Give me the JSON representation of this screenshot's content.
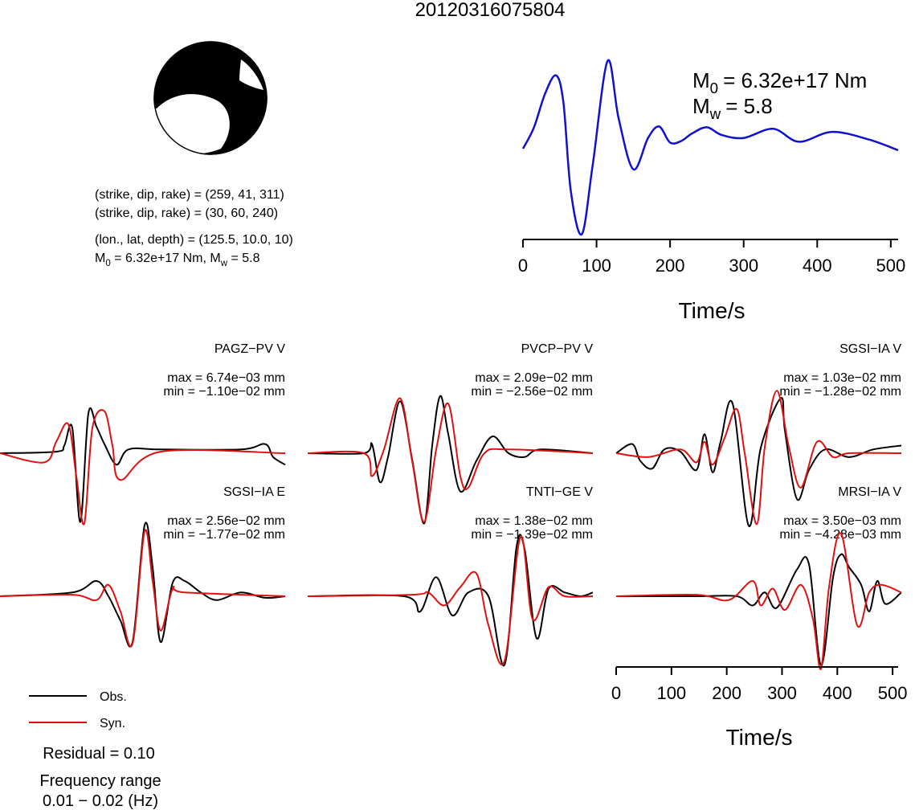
{
  "title": "20120316075804",
  "colors": {
    "obs": "#000000",
    "syn": "#e01010",
    "stf": "#1010d0",
    "beach_dark": "#000000",
    "beach_light": "#ffffff"
  },
  "mechanism": {
    "line1": "(strike, dip, rake) = (259, 41, 311)",
    "line2": "(strike, dip, rake) = (30, 60, 240)",
    "line3": "(lon., lat, depth) = (125.5, 10.0, 10)",
    "m0_line": {
      "m": "M",
      "sub0": "0",
      "v0": " = 6.32e+17 Nm, M",
      "subw": "w",
      "vw": " = 5.8"
    }
  },
  "stf_labels": {
    "m0_value": "= 6.32e+17 Nm",
    "mw_value": "= 5.8",
    "m": "M",
    "sub0": "0",
    "subw": "w"
  },
  "stf_axis": {
    "label": "Time/s",
    "ticks": [
      "0",
      "100",
      "200",
      "300",
      "400",
      "500"
    ]
  },
  "wave_axis": {
    "label": "Time/s",
    "ticks": [
      "0",
      "100",
      "200",
      "300",
      "400",
      "500"
    ]
  },
  "legend": {
    "obs": "Obs.",
    "syn": "Syn."
  },
  "residual": "Residual = 0.10",
  "frequency": {
    "line1": "Frequency range",
    "line2": "0.01 − 0.02 (Hz)"
  },
  "chart_data": [
    {
      "type": "line",
      "name": "source time function",
      "x_range": [
        0,
        510
      ],
      "x": [
        0,
        15,
        30,
        45,
        55,
        65,
        80,
        95,
        115,
        130,
        150,
        170,
        185,
        200,
        215,
        230,
        250,
        270,
        300,
        340,
        375,
        420,
        470,
        510
      ],
      "y": [
        0,
        0.28,
        0.72,
        0.96,
        0.6,
        -0.55,
        -1.12,
        -0.2,
        1.15,
        0.4,
        -0.27,
        0.14,
        0.29,
        0.08,
        0.1,
        0.2,
        0.28,
        0.18,
        0.14,
        0.26,
        0.09,
        0.22,
        0.12,
        -0.02
      ]
    },
    {
      "type": "line",
      "x_range": [
        0,
        510
      ],
      "stations": [
        {
          "label": "PAGZ−PV V",
          "max_label": "max = 6.74e−03 mm",
          "min_label": "min = −1.10e−02 mm",
          "series": [
            {
              "name": "Obs.",
              "x": [
                0,
                70,
                80,
                90,
                100,
                110,
                120,
                130,
                145,
                160,
                200,
                300,
                330,
                340,
                355
              ],
              "y": [
                0,
                0.02,
                0.1,
                0.33,
                -0.9,
                0.52,
                0.35,
                0.12,
                -0.15,
                0.05,
                0.05,
                0.05,
                0.12,
                -0.05,
                -0.15
              ]
            },
            {
              "name": "Syn.",
              "x": [
                0,
                55,
                70,
                85,
                95,
                105,
                115,
                130,
                140,
                150,
                200,
                355
              ],
              "y": [
                0,
                -0.12,
                0.15,
                0.38,
                -0.3,
                -0.92,
                0.33,
                0.55,
                0.1,
                -0.35,
                0.02,
                0
              ]
            }
          ]
        },
        {
          "label": "PVCP−PV V",
          "max_label": "max = 2.09e−02 mm",
          "min_label": "min = −2.56e−02 mm",
          "series": [
            {
              "name": "Obs.",
              "x": [
                0,
                70,
                80,
                90,
                100,
                115,
                130,
                145,
                155,
                165,
                175,
                190,
                210,
                230,
                250,
                270,
                290,
                355
              ],
              "y": [
                0,
                0,
                0.12,
                -0.38,
                -0.05,
                0.68,
                -0.08,
                -0.92,
                0.1,
                0.75,
                0.25,
                -0.5,
                -0.1,
                0.22,
                0,
                -0.05,
                0.05,
                0
              ]
            },
            {
              "name": "Syn.",
              "x": [
                0,
                70,
                80,
                95,
                115,
                130,
                145,
                160,
                175,
                190,
                200,
                220,
                250,
                355
              ],
              "y": [
                0,
                0,
                -0.3,
                0.05,
                0.72,
                -0.1,
                -0.9,
                0.05,
                0.65,
                -0.3,
                -0.45,
                0,
                0.05,
                0
              ]
            }
          ]
        },
        {
          "label": "SGSI−IA V",
          "max_label": "max = 1.03e−02 mm",
          "min_label": "min = −1.28e−02 mm",
          "series": [
            {
              "name": "Obs.",
              "x": [
                0,
                20,
                30,
                45,
                60,
                80,
                100,
                110,
                120,
                130,
                145,
                165,
                180,
                205,
                210,
                225,
                240,
                260,
                290,
                320,
                355
              ],
              "y": [
                0,
                0.12,
                -0.1,
                -0.2,
                0.05,
                0.02,
                -0.22,
                0.25,
                -0.25,
                0.15,
                0.65,
                -0.95,
                0.07,
                0.72,
                0.3,
                -0.6,
                -0.22,
                0.05,
                -0.05,
                0.05,
                0.1
              ]
            },
            {
              "name": "Syn.",
              "x": [
                0,
                40,
                80,
                100,
                110,
                120,
                135,
                150,
                160,
                175,
                185,
                200,
                215,
                230,
                250,
                270,
                290,
                355
              ],
              "y": [
                0,
                -0.05,
                0.05,
                -0.12,
                0.15,
                -0.15,
                0.2,
                0.58,
                0.0,
                -0.93,
                0.08,
                0.82,
                0.08,
                -0.45,
                0.15,
                -0.05,
                0,
                0
              ]
            }
          ]
        },
        {
          "label": "SGSI−IA E",
          "max_label": "max = 2.56e−02 mm",
          "min_label": "min = −1.77e−02 mm",
          "series": [
            {
              "name": "Obs.",
              "x": [
                0,
                90,
                120,
                135,
                150,
                165,
                180,
                190,
                200,
                215,
                230,
                250,
                270,
                300,
                330,
                355
              ],
              "y": [
                0,
                0.05,
                0.2,
                0,
                -0.32,
                -0.6,
                0.93,
                0.38,
                -0.6,
                0.18,
                0.2,
                0.05,
                -0.05,
                0.05,
                -0.02,
                0
              ]
            },
            {
              "name": "Syn.",
              "x": [
                0,
                90,
                120,
                135,
                150,
                165,
                180,
                190,
                200,
                215,
                230,
                355
              ],
              "y": [
                0,
                0.02,
                -0.05,
                0.15,
                -0.2,
                -0.62,
                0.85,
                0.2,
                -0.45,
                0.1,
                0.05,
                0
              ]
            }
          ]
        },
        {
          "label": "TNTI−GE V",
          "max_label": "max = 1.38e−02 mm",
          "min_label": "min = −1.39e−02 mm",
          "series": [
            {
              "name": "Obs.",
              "x": [
                0,
                120,
                140,
                160,
                180,
                200,
                225,
                245,
                260,
                270,
                285,
                300,
                320,
                340,
                355
              ],
              "y": [
                0,
                0,
                -0.2,
                0.25,
                -0.25,
                0.05,
                0.0,
                -0.9,
                0.65,
                0.62,
                -0.55,
                0.1,
                0.05,
                0,
                0.05
              ]
            },
            {
              "name": "Syn.",
              "x": [
                0,
                130,
                150,
                170,
                190,
                210,
                225,
                245,
                265,
                280,
                300,
                320,
                355
              ],
              "y": [
                0,
                0.02,
                0.05,
                -0.12,
                0.12,
                0.3,
                -0.38,
                -0.85,
                0.78,
                -0.3,
                0.12,
                0,
                0
              ]
            }
          ]
        },
        {
          "label": "MRSI−IA V",
          "max_label": "max = 3.50e−03 mm",
          "min_label": "min = −4.28e−03 mm",
          "series": [
            {
              "name": "Obs.",
              "x": [
                0,
                100,
                150,
                170,
                185,
                200,
                225,
                240,
                255,
                270,
                280,
                290,
                305,
                315,
                325,
                335,
                355
              ],
              "y": [
                0,
                0,
                0.0,
                -0.12,
                0.05,
                -0.15,
                0.35,
                0.42,
                -0.9,
                0.25,
                0.55,
                0.38,
                0.15,
                -0.2,
                0.2,
                -0.1,
                0.05
              ]
            },
            {
              "name": "Syn.",
              "x": [
                0,
                100,
                140,
                170,
                180,
                195,
                210,
                230,
                245,
                255,
                265,
                280,
                300,
                315,
                330,
                355
              ],
              "y": [
                0,
                0.02,
                -0.05,
                0.2,
                -0.12,
                0.1,
                -0.18,
                0.15,
                -0.3,
                -0.95,
                0.12,
                0.82,
                -0.38,
                0.05,
                0.15,
                0.05
              ]
            }
          ]
        }
      ]
    }
  ]
}
